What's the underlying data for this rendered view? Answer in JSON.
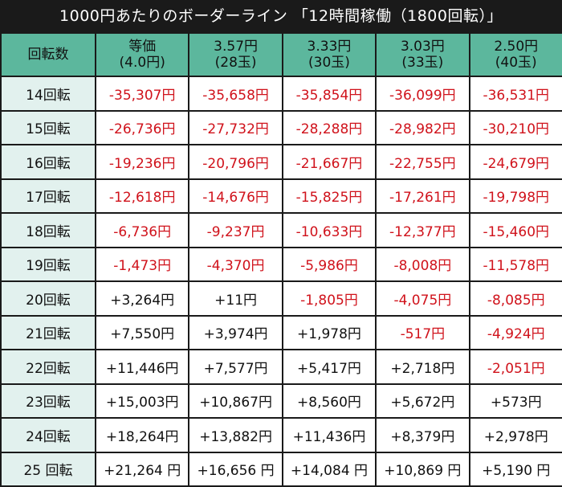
{
  "title": "1000円あたりのボーダーライン 「12時間稼働（1800回転）」",
  "header": {
    "corner": "回転数",
    "columns": [
      {
        "line1": "等価",
        "line2": "(4.0円)"
      },
      {
        "line1": "3.57円",
        "line2": "(28玉)"
      },
      {
        "line1": "3.33円",
        "line2": "(30玉)"
      },
      {
        "line1": "3.03円",
        "line2": "(33玉)"
      },
      {
        "line1": "2.50円",
        "line2": "(40玉)"
      }
    ]
  },
  "colors": {
    "header_bg": "#5cb79d",
    "row_label_bg": "#e2f1ee",
    "negative_text": "#d0121b",
    "positive_text": "#111111",
    "frame": "#1a1a1a"
  },
  "rows": [
    {
      "label": "14回転",
      "values": [
        "-35,307円",
        "-35,658円",
        "-35,854円",
        "-36,099円",
        "-36,531円"
      ]
    },
    {
      "label": "15回転",
      "values": [
        "-26,736円",
        "-27,732円",
        "-28,288円",
        "-28,982円",
        "-30,210円"
      ]
    },
    {
      "label": "16回転",
      "values": [
        "-19,236円",
        "-20,796円",
        "-21,667円",
        "-22,755円",
        "-24,679円"
      ]
    },
    {
      "label": "17回転",
      "values": [
        "-12,618円",
        "-14,676円",
        "-15,825円",
        "-17,261円",
        "-19,798円"
      ]
    },
    {
      "label": "18回転",
      "values": [
        "-6,736円",
        "-9,237円",
        "-10,633円",
        "-12,377円",
        "-15,460円"
      ]
    },
    {
      "label": "19回転",
      "values": [
        "-1,473円",
        "-4,370円",
        "-5,986円",
        "-8,008円",
        "-11,578円"
      ]
    },
    {
      "label": "20回転",
      "values": [
        "+3,264円",
        "+11円",
        "-1,805円",
        "-4,075円",
        "-8,085円"
      ]
    },
    {
      "label": "21回転",
      "values": [
        "+7,550円",
        "+3,974円",
        "+1,978円",
        "-517円",
        "-4,924円"
      ]
    },
    {
      "label": "22回転",
      "values": [
        "+11,446円",
        "+7,577円",
        "+5,417円",
        "+2,718円",
        "-2,051円"
      ]
    },
    {
      "label": "23回転",
      "values": [
        "+15,003円",
        "+10,867円",
        "+8,560円",
        "+5,672円",
        "+573円"
      ]
    },
    {
      "label": "24回転",
      "values": [
        "+18,264円",
        "+13,882円",
        "+11,436円",
        "+8,379円",
        "+2,978円"
      ]
    },
    {
      "label": "25 回転",
      "values": [
        "+21,264 円",
        "+16,656 円",
        "+14,084 円",
        "+10,869 円",
        "+5,190 円"
      ]
    }
  ]
}
